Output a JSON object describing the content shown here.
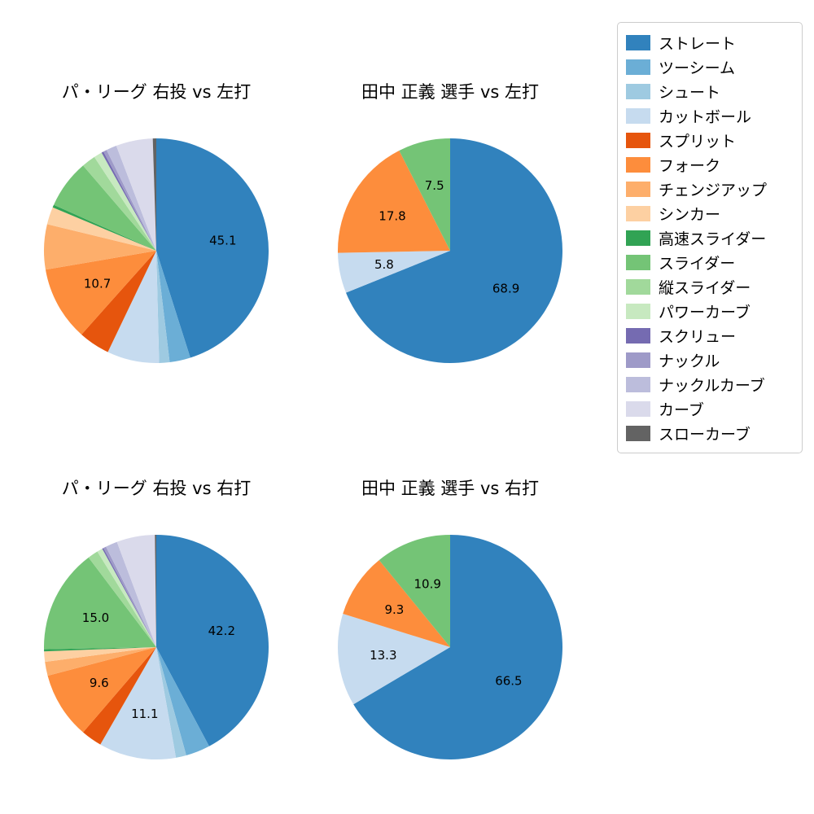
{
  "legend": {
    "items": [
      {
        "label": "ストレート",
        "color": "#3182bd"
      },
      {
        "label": "ツーシーム",
        "color": "#6baed6"
      },
      {
        "label": "シュート",
        "color": "#9ecae1"
      },
      {
        "label": "カットボール",
        "color": "#c6dbef"
      },
      {
        "label": "スプリット",
        "color": "#e6550d"
      },
      {
        "label": "フォーク",
        "color": "#fd8d3c"
      },
      {
        "label": "チェンジアップ",
        "color": "#fdae6b"
      },
      {
        "label": "シンカー",
        "color": "#fdd0a2"
      },
      {
        "label": "高速スライダー",
        "color": "#31a354"
      },
      {
        "label": "スライダー",
        "color": "#74c476"
      },
      {
        "label": "縦スライダー",
        "color": "#a1d99b"
      },
      {
        "label": "パワーカーブ",
        "color": "#c7e9c0"
      },
      {
        "label": "スクリュー",
        "color": "#756bb1"
      },
      {
        "label": "ナックル",
        "color": "#9e9ac8"
      },
      {
        "label": "ナックルカーブ",
        "color": "#bcbddc"
      },
      {
        "label": "カーブ",
        "color": "#dadaeb"
      },
      {
        "label": "スローカーブ",
        "color": "#636363"
      }
    ]
  },
  "chart_data": [
    {
      "type": "pie",
      "title": "パ・リーグ 右投 vs 左打",
      "start_angle": "top",
      "direction": "clockwise",
      "slices": [
        {
          "label": "ストレート",
          "value": 45.1,
          "show_label": true
        },
        {
          "label": "ツーシーム",
          "value": 3.0,
          "show_label": false
        },
        {
          "label": "シュート",
          "value": 1.5,
          "show_label": false
        },
        {
          "label": "カットボール",
          "value": 7.5,
          "show_label": false
        },
        {
          "label": "スプリット",
          "value": 4.5,
          "show_label": false
        },
        {
          "label": "フォーク",
          "value": 10.7,
          "show_label": true
        },
        {
          "label": "チェンジアップ",
          "value": 6.5,
          "show_label": false
        },
        {
          "label": "シンカー",
          "value": 2.5,
          "show_label": false
        },
        {
          "label": "高速スライダー",
          "value": 0.4,
          "show_label": false
        },
        {
          "label": "スライダー",
          "value": 7.0,
          "show_label": false
        },
        {
          "label": "縦スライダー",
          "value": 2.0,
          "show_label": false
        },
        {
          "label": "パワーカーブ",
          "value": 1.2,
          "show_label": false
        },
        {
          "label": "スクリュー",
          "value": 0.3,
          "show_label": false
        },
        {
          "label": "ナックル",
          "value": 0.5,
          "show_label": false
        },
        {
          "label": "ナックルカーブ",
          "value": 1.5,
          "show_label": false
        },
        {
          "label": "カーブ",
          "value": 5.3,
          "show_label": false
        },
        {
          "label": "スローカーブ",
          "value": 0.5,
          "show_label": false
        }
      ]
    },
    {
      "type": "pie",
      "title": "田中 正義 選手 vs 左打",
      "start_angle": "top",
      "direction": "clockwise",
      "slices": [
        {
          "label": "ストレート",
          "value": 68.9,
          "show_label": true
        },
        {
          "label": "カットボール",
          "value": 5.8,
          "show_label": true
        },
        {
          "label": "フォーク",
          "value": 17.8,
          "show_label": true
        },
        {
          "label": "スライダー",
          "value": 7.5,
          "show_label": true
        }
      ]
    },
    {
      "type": "pie",
      "title": "パ・リーグ 右投 vs 右打",
      "start_angle": "top",
      "direction": "clockwise",
      "slices": [
        {
          "label": "ストレート",
          "value": 42.2,
          "show_label": true
        },
        {
          "label": "ツーシーム",
          "value": 3.5,
          "show_label": false
        },
        {
          "label": "シュート",
          "value": 1.5,
          "show_label": false
        },
        {
          "label": "カットボール",
          "value": 11.1,
          "show_label": true
        },
        {
          "label": "スプリット",
          "value": 3.0,
          "show_label": false
        },
        {
          "label": "フォーク",
          "value": 9.6,
          "show_label": true
        },
        {
          "label": "チェンジアップ",
          "value": 2.0,
          "show_label": false
        },
        {
          "label": "シンカー",
          "value": 1.5,
          "show_label": false
        },
        {
          "label": "高速スライダー",
          "value": 0.3,
          "show_label": false
        },
        {
          "label": "スライダー",
          "value": 15.0,
          "show_label": true
        },
        {
          "label": "縦スライダー",
          "value": 1.5,
          "show_label": false
        },
        {
          "label": "パワーカーブ",
          "value": 0.8,
          "show_label": false
        },
        {
          "label": "スクリュー",
          "value": 0.2,
          "show_label": false
        },
        {
          "label": "ナックル",
          "value": 0.4,
          "show_label": false
        },
        {
          "label": "ナックルカーブ",
          "value": 1.7,
          "show_label": false
        },
        {
          "label": "カーブ",
          "value": 5.5,
          "show_label": false
        },
        {
          "label": "スローカーブ",
          "value": 0.2,
          "show_label": false
        }
      ]
    },
    {
      "type": "pie",
      "title": "田中 正義 選手 vs 右打",
      "start_angle": "top",
      "direction": "clockwise",
      "slices": [
        {
          "label": "ストレート",
          "value": 66.5,
          "show_label": true
        },
        {
          "label": "カットボール",
          "value": 13.3,
          "show_label": true
        },
        {
          "label": "フォーク",
          "value": 9.3,
          "show_label": true
        },
        {
          "label": "スライダー",
          "value": 10.9,
          "show_label": true
        }
      ]
    }
  ]
}
